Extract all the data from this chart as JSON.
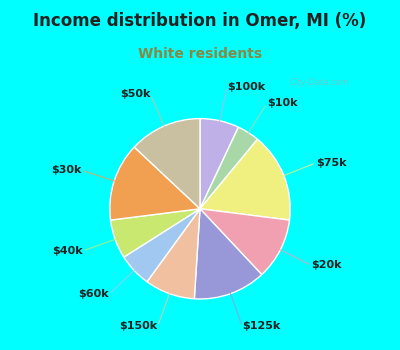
{
  "title": "Income distribution in Omer, MI (%)",
  "subtitle": "White residents",
  "title_color": "#222222",
  "subtitle_color": "#888844",
  "background_color": "#00ffff",
  "chart_bg_top": "#e8f8f0",
  "chart_bg_bottom": "#d0eee0",
  "labels": [
    "$100k",
    "$10k",
    "$75k",
    "$20k",
    "$125k",
    "$150k",
    "$60k",
    "$40k",
    "$30k",
    "$50k"
  ],
  "values": [
    7,
    4,
    16,
    11,
    13,
    9,
    6,
    7,
    14,
    13
  ],
  "colors": [
    "#c0b0e8",
    "#a8d8a8",
    "#f0f080",
    "#f0a0b0",
    "#9898d8",
    "#f0c0a0",
    "#a0c8f0",
    "#c8e870",
    "#f0a050",
    "#c8c0a0"
  ],
  "startangle": 90,
  "label_fontsize": 8,
  "title_fontsize": 12,
  "subtitle_fontsize": 10,
  "wedge_linewidth": 1.0,
  "wedge_edgecolor": "#ffffff",
  "label_color": "#222222",
  "line_alpha": 0.7
}
